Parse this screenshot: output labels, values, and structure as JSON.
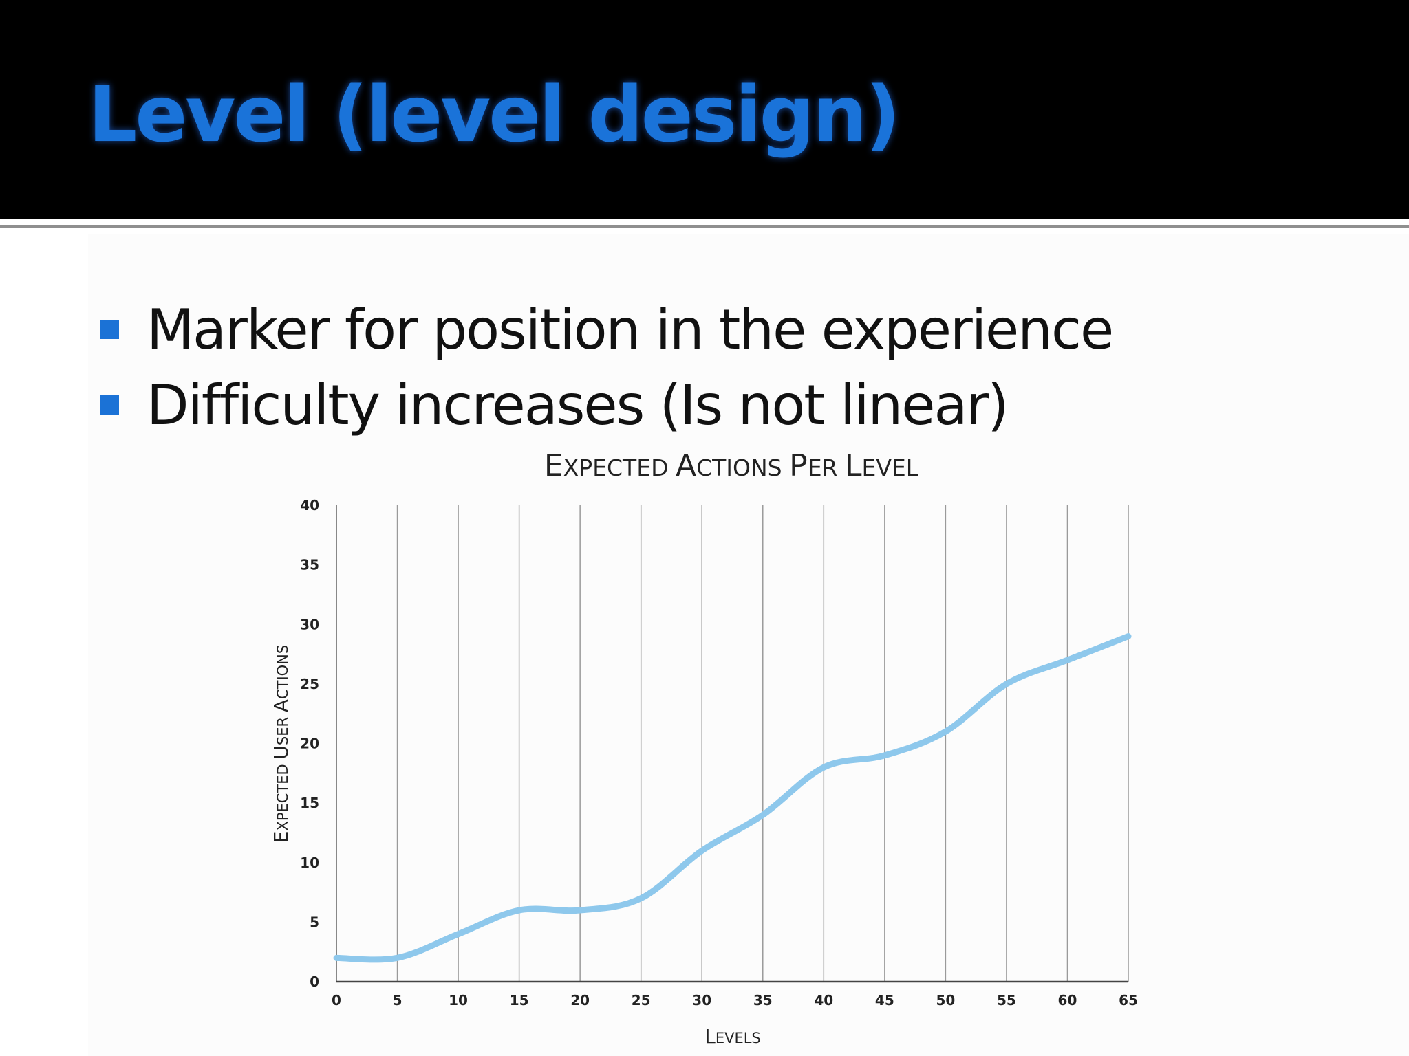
{
  "slide": {
    "title": "Level (level design)",
    "bullets": [
      "Marker for position in the experience",
      "Difficulty increases (Is not linear)"
    ],
    "colors": {
      "header_bg": "#000000",
      "title": "#1a73d9",
      "bullet_marker": "#1b72d6",
      "line": "#8ec8ec"
    }
  },
  "chart_data": {
    "type": "line",
    "title": "Expected Actions Per Level",
    "xlabel": "Levels",
    "ylabel": "Expected User Actions",
    "xlim": [
      0,
      65
    ],
    "ylim": [
      0,
      40
    ],
    "xticks": [
      0,
      5,
      10,
      15,
      20,
      25,
      30,
      35,
      40,
      45,
      50,
      55,
      60,
      65
    ],
    "yticks": [
      0,
      5,
      10,
      15,
      20,
      25,
      30,
      35,
      40
    ],
    "grid": "vertical",
    "legend": "none",
    "series": [
      {
        "x": [
          0,
          5,
          10,
          15,
          20,
          25,
          30,
          35,
          40,
          45,
          50,
          55,
          60,
          65
        ],
        "y": [
          2,
          2,
          4,
          6,
          6,
          7,
          11,
          14,
          18,
          19,
          21,
          25,
          27,
          29
        ]
      }
    ]
  }
}
